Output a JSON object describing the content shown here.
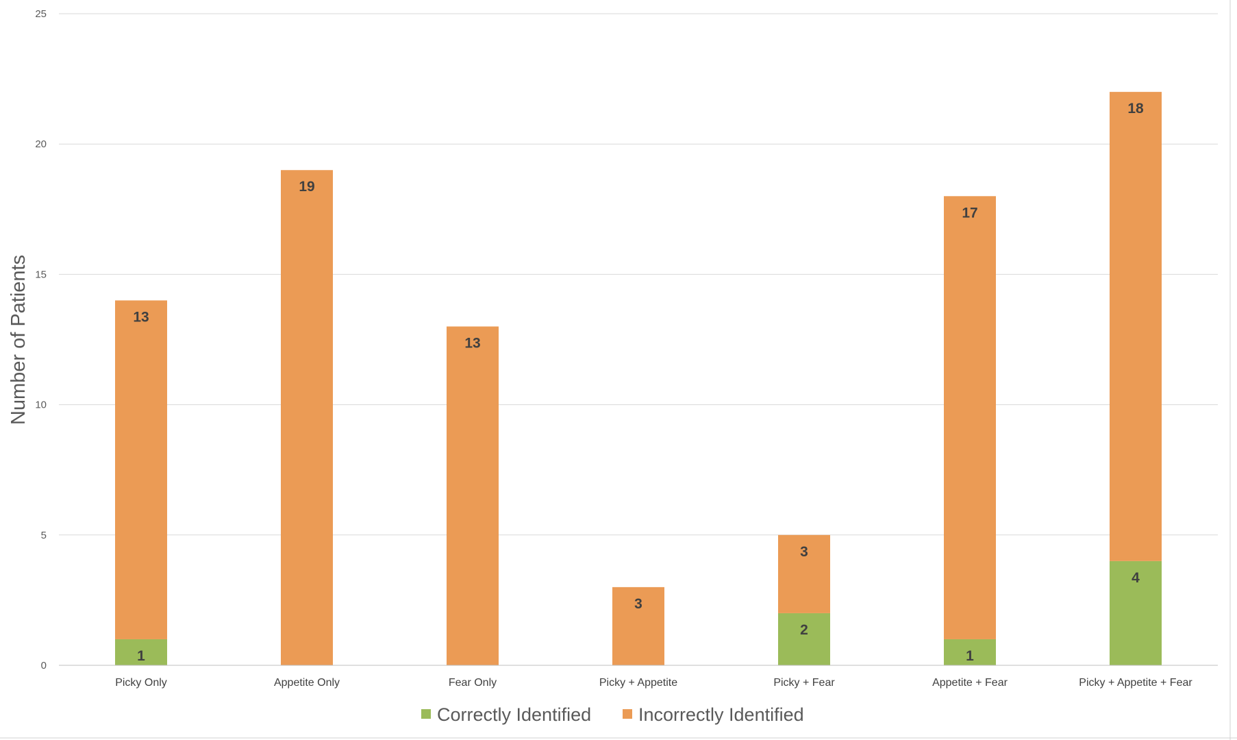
{
  "chart_data": {
    "type": "bar",
    "stacked": true,
    "title": "",
    "xlabel": "",
    "ylabel": "Number of Patients",
    "ylim": [
      0,
      25
    ],
    "yticks": [
      0,
      5,
      10,
      15,
      20,
      25
    ],
    "grid": true,
    "legend_position": "bottom",
    "categories": [
      "Picky Only",
      "Appetite Only",
      "Fear Only",
      "Picky + Appetite",
      "Picky + Fear",
      "Appetite + Fear",
      "Picky + Appetite + Fear"
    ],
    "series": [
      {
        "name": "Correctly Identified",
        "color": "#9bbb59",
        "values": [
          1,
          0,
          0,
          0,
          2,
          1,
          4
        ],
        "labels": [
          "1",
          "",
          "",
          "",
          "2",
          "1",
          "4"
        ]
      },
      {
        "name": "Incorrectly Identified",
        "color": "#eb9b55",
        "values": [
          13,
          19,
          13,
          3,
          3,
          17,
          18
        ],
        "labels": [
          "13",
          "19",
          "13",
          "3",
          "3",
          "17",
          "18"
        ]
      }
    ]
  }
}
